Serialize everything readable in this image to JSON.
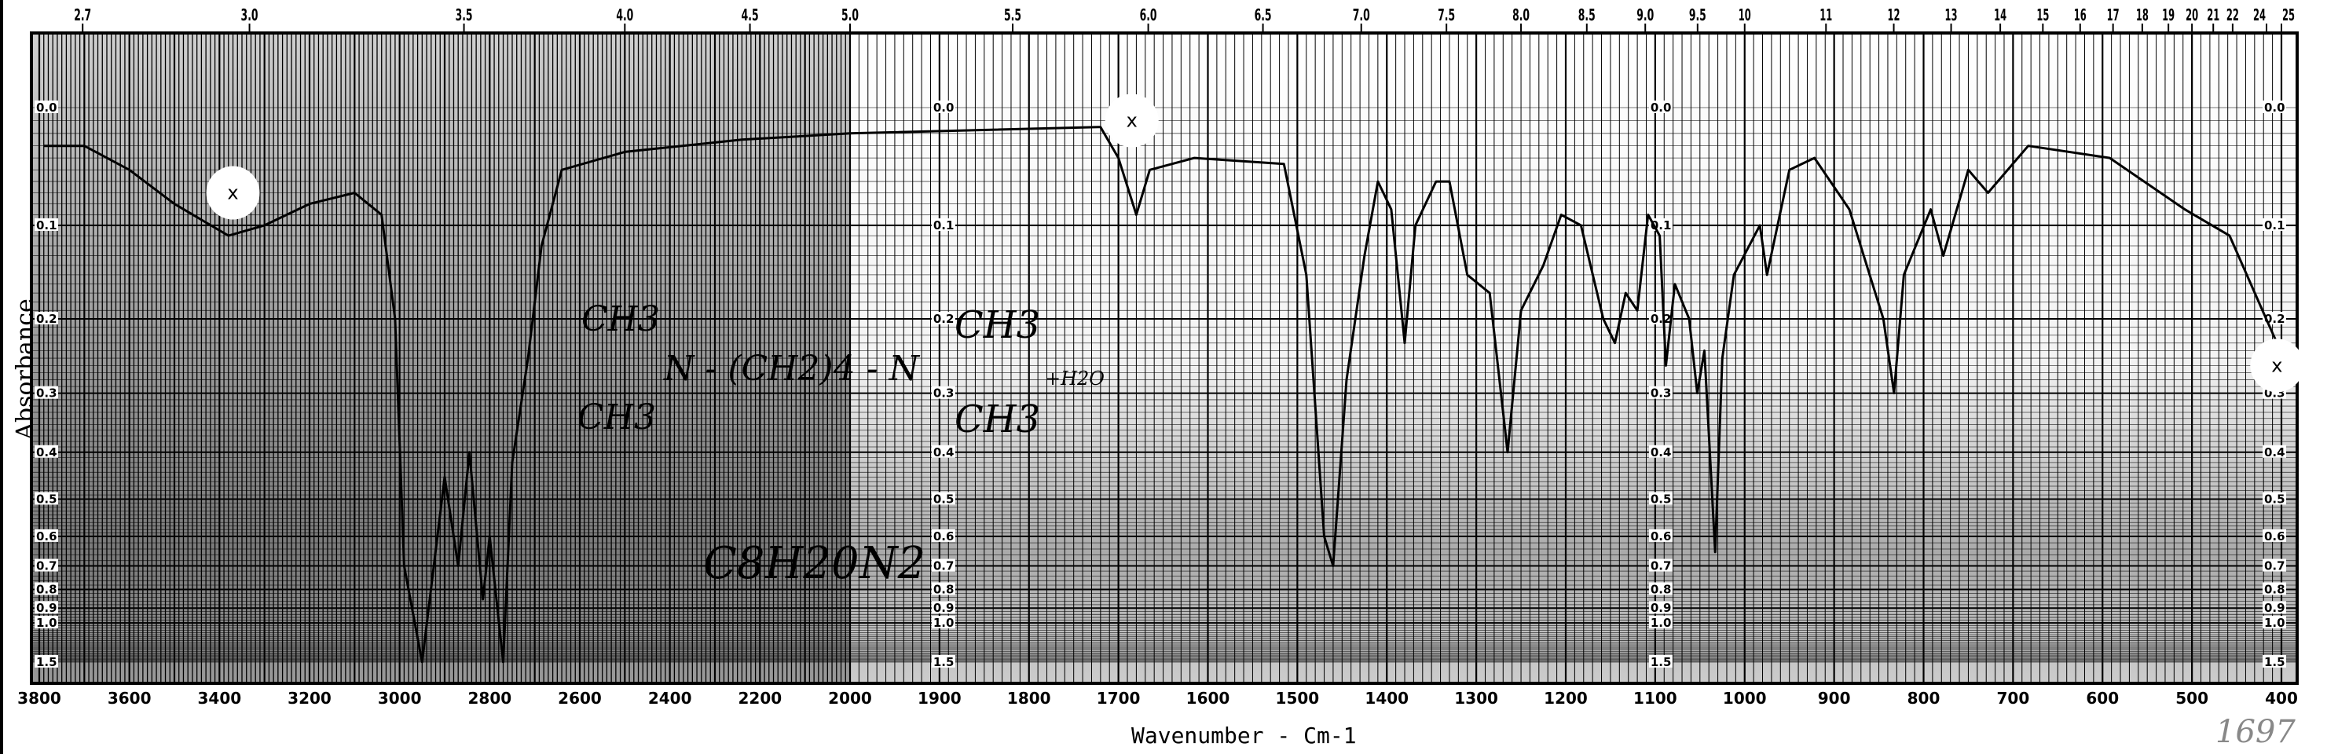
{
  "chart_data": {
    "type": "line",
    "title": "",
    "xlabel": "Wavenumber - Cm-1",
    "ylabel": "Absorbance",
    "x_axis": {
      "range": [
        3800,
        400
      ],
      "scale_break": 2000,
      "reversed": true,
      "ticks": [
        3800,
        3600,
        3400,
        3200,
        3000,
        2800,
        2600,
        2400,
        2200,
        2000,
        1900,
        1800,
        1700,
        1600,
        1500,
        1400,
        1300,
        1200,
        1100,
        1000,
        900,
        800,
        700,
        600,
        500,
        400
      ]
    },
    "top_axis": {
      "unit": "microns",
      "ticks": [
        "2.7",
        "3.0",
        "3.5",
        "4.0",
        "4.5",
        "5.0",
        "5.5",
        "6.0",
        "6.5",
        "7.0",
        "7.5",
        "8.0",
        "8.5",
        "9.0",
        "9.5",
        "10",
        "11",
        "12",
        "13",
        "14",
        "15",
        "16",
        "17",
        "18",
        "19",
        "20",
        "21",
        "22",
        "24",
        "25"
      ]
    },
    "y_axis": {
      "range": [
        0.0,
        1.5
      ],
      "scale": "absorbance (linear in transmittance)",
      "ticks": [
        "0.0",
        "0.1",
        "0.2",
        "0.3",
        "0.4",
        "0.5",
        "0.6",
        "0.7",
        "0.8",
        "0.9",
        "1.0",
        "1.5"
      ]
    },
    "grid": true,
    "series": [
      {
        "color": "#000000",
        "points": [
          [
            3790,
            0.03
          ],
          [
            3700,
            0.03
          ],
          [
            3600,
            0.05
          ],
          [
            3500,
            0.08
          ],
          [
            3380,
            0.11
          ],
          [
            3300,
            0.1
          ],
          [
            3200,
            0.08
          ],
          [
            3100,
            0.07
          ],
          [
            3040,
            0.09
          ],
          [
            3010,
            0.2
          ],
          [
            2990,
            0.7
          ],
          [
            2950,
            1.5
          ],
          [
            2900,
            0.45
          ],
          [
            2870,
            0.7
          ],
          [
            2845,
            0.4
          ],
          [
            2815,
            0.85
          ],
          [
            2800,
            0.6
          ],
          [
            2770,
            1.5
          ],
          [
            2750,
            0.42
          ],
          [
            2715,
            0.25
          ],
          [
            2685,
            0.12
          ],
          [
            2640,
            0.05
          ],
          [
            2500,
            0.035
          ],
          [
            2240,
            0.025
          ],
          [
            2000,
            0.02
          ],
          [
            1720,
            0.015
          ],
          [
            1700,
            0.04
          ],
          [
            1680,
            0.09
          ],
          [
            1665,
            0.05
          ],
          [
            1615,
            0.04
          ],
          [
            1515,
            0.045
          ],
          [
            1490,
            0.15
          ],
          [
            1470,
            0.6
          ],
          [
            1460,
            0.7
          ],
          [
            1445,
            0.28
          ],
          [
            1425,
            0.13
          ],
          [
            1410,
            0.06
          ],
          [
            1395,
            0.085
          ],
          [
            1380,
            0.23
          ],
          [
            1368,
            0.1
          ],
          [
            1345,
            0.06
          ],
          [
            1330,
            0.06
          ],
          [
            1310,
            0.15
          ],
          [
            1285,
            0.17
          ],
          [
            1265,
            0.4
          ],
          [
            1250,
            0.19
          ],
          [
            1225,
            0.14
          ],
          [
            1205,
            0.09
          ],
          [
            1183,
            0.1
          ],
          [
            1158,
            0.2
          ],
          [
            1145,
            0.23
          ],
          [
            1133,
            0.17
          ],
          [
            1120,
            0.19
          ],
          [
            1108,
            0.09
          ],
          [
            1095,
            0.11
          ],
          [
            1088,
            0.26
          ],
          [
            1078,
            0.16
          ],
          [
            1062,
            0.2
          ],
          [
            1053,
            0.3
          ],
          [
            1045,
            0.24
          ],
          [
            1033,
            0.65
          ],
          [
            1025,
            0.25
          ],
          [
            1012,
            0.15
          ],
          [
            983,
            0.1
          ],
          [
            975,
            0.15
          ],
          [
            950,
            0.05
          ],
          [
            922,
            0.04
          ],
          [
            883,
            0.085
          ],
          [
            845,
            0.2
          ],
          [
            833,
            0.3
          ],
          [
            822,
            0.15
          ],
          [
            792,
            0.085
          ],
          [
            778,
            0.13
          ],
          [
            750,
            0.05
          ],
          [
            728,
            0.07
          ],
          [
            683,
            0.03
          ],
          [
            592,
            0.04
          ],
          [
            508,
            0.085
          ],
          [
            458,
            0.11
          ],
          [
            417,
            0.2
          ],
          [
            405,
            0.23
          ]
        ]
      }
    ],
    "markers": [
      {
        "label": "x",
        "wavenumber": 3370,
        "absorbance": 0.07
      },
      {
        "label": "x",
        "wavenumber": 1685,
        "absorbance": 0.01
      },
      {
        "label": "x",
        "wavenumber": 405,
        "absorbance": 0.26
      }
    ],
    "annotations": {
      "structure_left_top": "CH3",
      "structure_left_bottom": "CH3",
      "structure_chain": "N - (CH2)4 - N",
      "structure_right_top": "CH3",
      "structure_right_bottom": "CH3",
      "formula": "C8H20N2",
      "water": "+H2O",
      "handwritten_number": "1697"
    }
  }
}
